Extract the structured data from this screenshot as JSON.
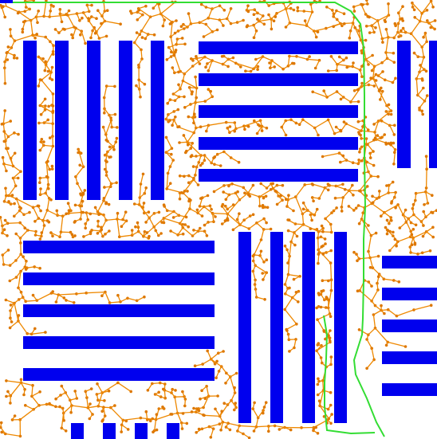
{
  "colors": {
    "background": "#ffffff",
    "obstacle": "#0000ee",
    "tree": "#ee8800",
    "tree_node": "#dd7700",
    "path": "#33dd33",
    "start_marker": "#0000ee"
  },
  "scene": {
    "type": "rrt-path-planning-map",
    "obstacle_groups": 7,
    "has_solution_path": true
  }
}
